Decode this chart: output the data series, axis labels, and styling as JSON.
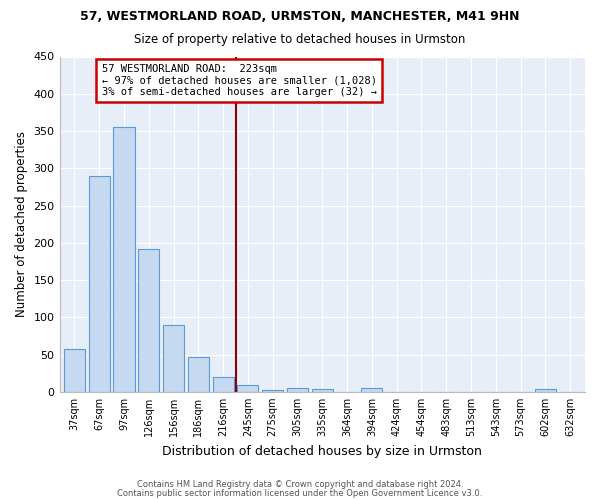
{
  "title1": "57, WESTMORLAND ROAD, URMSTON, MANCHESTER, M41 9HN",
  "title2": "Size of property relative to detached houses in Urmston",
  "xlabel": "Distribution of detached houses by size in Urmston",
  "ylabel": "Number of detached properties",
  "bar_labels": [
    "37sqm",
    "67sqm",
    "97sqm",
    "126sqm",
    "156sqm",
    "186sqm",
    "216sqm",
    "245sqm",
    "275sqm",
    "305sqm",
    "335sqm",
    "364sqm",
    "394sqm",
    "424sqm",
    "454sqm",
    "483sqm",
    "513sqm",
    "543sqm",
    "573sqm",
    "602sqm",
    "632sqm"
  ],
  "bar_values": [
    58,
    290,
    356,
    192,
    90,
    47,
    20,
    9,
    3,
    5,
    4,
    0,
    5,
    0,
    0,
    0,
    0,
    0,
    0,
    4,
    0
  ],
  "bar_color": "#c5d9f0",
  "bar_edge_color": "#5b9bd5",
  "vline_x": 6.5,
  "vline_color": "#8b0000",
  "annotation_line1": "57 WESTMORLAND ROAD:  223sqm",
  "annotation_line2": "← 97% of detached houses are smaller (1,028)",
  "annotation_line3": "3% of semi-detached houses are larger (32) →",
  "annotation_box_color": "#ffffff",
  "annotation_box_edge": "#cc0000",
  "ylim": [
    0,
    450
  ],
  "yticks": [
    0,
    50,
    100,
    150,
    200,
    250,
    300,
    350,
    400,
    450
  ],
  "footer1": "Contains HM Land Registry data © Crown copyright and database right 2024.",
  "footer2": "Contains public sector information licensed under the Open Government Licence v3.0.",
  "bg_color": "#ffffff",
  "plot_bg_color": "#e8eef8",
  "grid_color": "#ffffff"
}
